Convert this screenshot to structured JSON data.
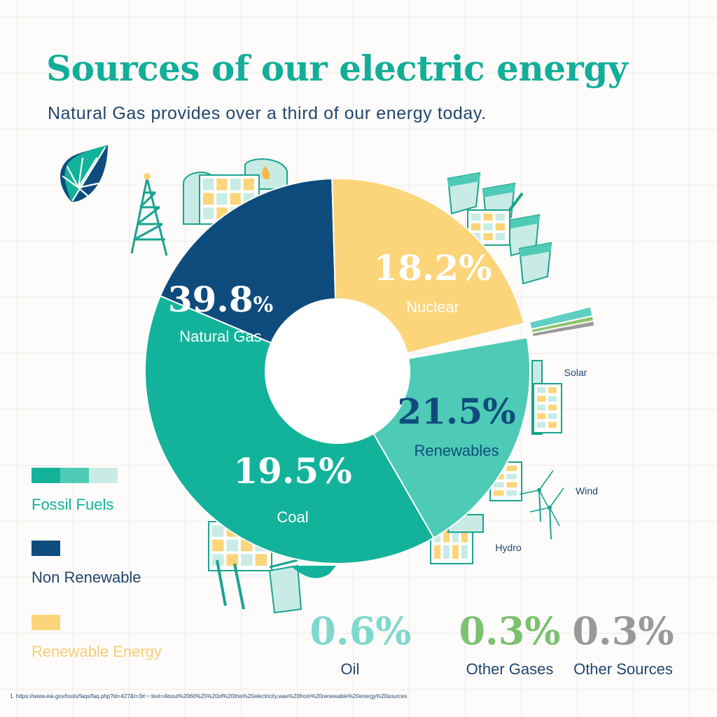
{
  "header": {
    "title": "Sources of our electric energy",
    "subtitle": "Natural Gas provides over a third of our energy today."
  },
  "legend": [
    {
      "label": "Fossil Fuels",
      "colors": [
        "#12b39a",
        "#4ecbb6",
        "#c8ece5"
      ],
      "label_color": "#12b39a"
    },
    {
      "label": "Non Renewable",
      "colors": [
        "#0e4c7d"
      ],
      "label_color": "#22466e"
    },
    {
      "label": "Renewable Energy",
      "colors": [
        "#fcd57a"
      ],
      "label_color": "#f8cd75"
    }
  ],
  "chart_data": {
    "type": "pie",
    "style": "donut",
    "slices": [
      {
        "label": "Natural Gas",
        "value": 39.8,
        "value_text": "39.8",
        "unit": "%",
        "color": "#12b39a",
        "text_color": "#ffffff"
      },
      {
        "label": "Nuclear",
        "value": 18.2,
        "value_text": "18.2%",
        "color": "#0e4c7d",
        "text_color": "#ffffff"
      },
      {
        "label": "Renewables",
        "value": 21.5,
        "value_text": "21.5%",
        "color": "#fcd57a",
        "text_color": "#0e4c7d"
      },
      {
        "label": "Oil",
        "value": 0.6,
        "value_text": "0.6%",
        "color": "#5fcfc1",
        "text_color": "#7fd8cd"
      },
      {
        "label": "Other Gases",
        "value": 0.3,
        "value_text": "0.3%",
        "color": "#8cc56b",
        "text_color": "#7cc070"
      },
      {
        "label": "Other Sources",
        "value": 0.3,
        "value_text": "0.3%",
        "color": "#9a9a9a",
        "text_color": "#999999"
      },
      {
        "label": "Coal",
        "value": 19.5,
        "value_text": "19.5%",
        "color": "#4ecbb6",
        "text_color": "#ffffff"
      }
    ],
    "annotations": [
      {
        "label": "Solar",
        "color": "#22466e"
      },
      {
        "label": "Wind",
        "color": "#22466e"
      },
      {
        "label": "Hydro",
        "color": "#22466e"
      }
    ]
  },
  "footnote": "1.  https://www.eia.gov/tools/faqs/faq.php?id=427&t=3#:~:text=About%2060%25%20of%20this%20electricity,was%20from%20renewable%20energy%20sources"
}
